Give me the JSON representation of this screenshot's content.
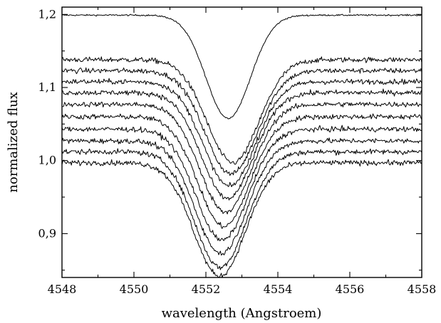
{
  "chart_data": {
    "type": "line",
    "title": "",
    "xlabel": "wavelength (Angstroem)",
    "ylabel": "normalized flux",
    "xlim": [
      4548,
      4558
    ],
    "ylim": [
      0.84,
      1.21
    ],
    "x_ticks": [
      4548,
      4550,
      4552,
      4554,
      4556,
      4558
    ],
    "x_tick_labels": [
      "4548",
      "4550",
      "4552",
      "4554",
      "4556",
      "4558"
    ],
    "y_ticks": [
      0.9,
      1.0,
      1.1,
      1.2
    ],
    "y_tick_labels": [
      "0,9",
      "1,0",
      "1,1",
      "1,2"
    ],
    "grid": false,
    "legend": "none",
    "line_color": "#000000",
    "series": [
      {
        "continuum": 1.199,
        "depth": 0.141,
        "center": 4552.62,
        "sigma": 0.62,
        "noise": 0.001
      },
      {
        "continuum": 1.138,
        "depth": 0.141,
        "center": 4552.75,
        "sigma": 0.72,
        "noise": 0.0035
      },
      {
        "continuum": 1.123,
        "depth": 0.141,
        "center": 4552.7,
        "sigma": 0.72,
        "noise": 0.0035
      },
      {
        "continuum": 1.108,
        "depth": 0.143,
        "center": 4552.65,
        "sigma": 0.72,
        "noise": 0.0035
      },
      {
        "continuum": 1.093,
        "depth": 0.145,
        "center": 4552.6,
        "sigma": 0.72,
        "noise": 0.0035
      },
      {
        "continuum": 1.077,
        "depth": 0.147,
        "center": 4552.55,
        "sigma": 0.72,
        "noise": 0.0035
      },
      {
        "continuum": 1.06,
        "depth": 0.15,
        "center": 4552.5,
        "sigma": 0.72,
        "noise": 0.0035
      },
      {
        "continuum": 1.043,
        "depth": 0.152,
        "center": 4552.45,
        "sigma": 0.72,
        "noise": 0.0035
      },
      {
        "continuum": 1.027,
        "depth": 0.154,
        "center": 4552.42,
        "sigma": 0.72,
        "noise": 0.0035
      },
      {
        "continuum": 1.012,
        "depth": 0.158,
        "center": 4552.4,
        "sigma": 0.72,
        "noise": 0.0035
      },
      {
        "continuum": 0.997,
        "depth": 0.155,
        "center": 4552.38,
        "sigma": 0.72,
        "noise": 0.0035
      }
    ]
  }
}
